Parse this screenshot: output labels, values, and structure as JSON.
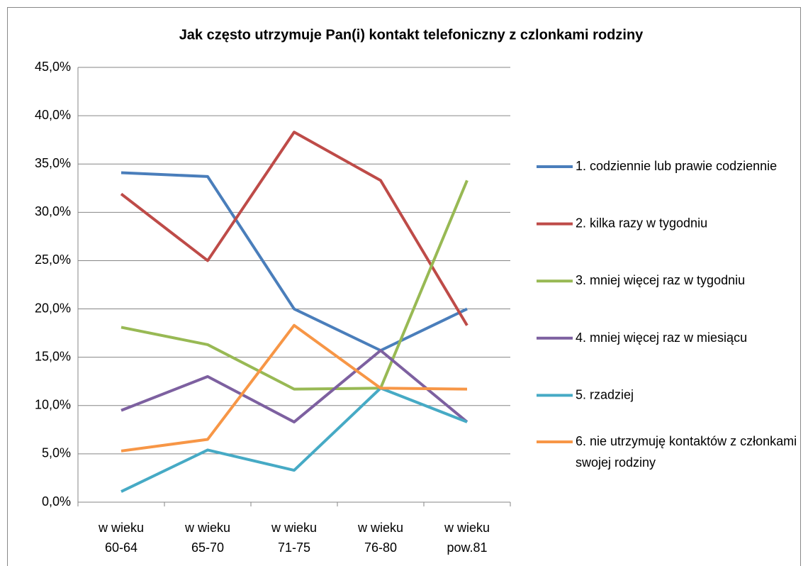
{
  "chart_data": {
    "type": "line",
    "title": "Jak często utrzymuje Pan(i) kontakt telefoniczny z czlonkami rodziny",
    "categories": [
      "w wieku 60-64",
      "w wieku 65-70",
      "w wieku 71-75",
      "w wieku 76-80",
      "w wieku pow.81"
    ],
    "series": [
      {
        "name": "1. codziennie lub prawie codziennie",
        "color": "#4a7ebb",
        "values": [
          34.1,
          33.7,
          20.0,
          15.7,
          20.0
        ]
      },
      {
        "name": "2. kilka razy w tygodniu",
        "color": "#be4b48",
        "values": [
          31.9,
          25.0,
          38.3,
          33.3,
          18.3
        ]
      },
      {
        "name": "3. mniej więcej raz w tygodniu",
        "color": "#98b954",
        "values": [
          18.1,
          16.3,
          11.7,
          11.8,
          33.3
        ]
      },
      {
        "name": "4. mniej więcej raz w miesiącu",
        "color": "#7d60a0",
        "values": [
          9.5,
          13.0,
          8.3,
          15.7,
          8.3
        ]
      },
      {
        "name": "5. rzadziej",
        "color": "#46aac5",
        "values": [
          1.1,
          5.4,
          3.3,
          11.8,
          8.3
        ]
      },
      {
        "name": "6. nie utrzymuję kontaktów z członkami swojej rodziny",
        "color": "#f79646",
        "values": [
          5.3,
          6.5,
          18.3,
          11.8,
          11.7
        ]
      }
    ],
    "ylim": [
      0,
      45
    ],
    "yticks": [
      {
        "value": 0,
        "label": "0,0%"
      },
      {
        "value": 5,
        "label": "5,0%"
      },
      {
        "value": 10,
        "label": "10,0%"
      },
      {
        "value": 15,
        "label": "15,0%"
      },
      {
        "value": 20,
        "label": "20,0%"
      },
      {
        "value": 25,
        "label": "25,0%"
      },
      {
        "value": 30,
        "label": "30,0%"
      },
      {
        "value": 35,
        "label": "35,0%"
      },
      {
        "value": 40,
        "label": "40,0%"
      },
      {
        "value": 45,
        "label": "45,0%"
      }
    ],
    "grid": true,
    "legend": "right"
  }
}
